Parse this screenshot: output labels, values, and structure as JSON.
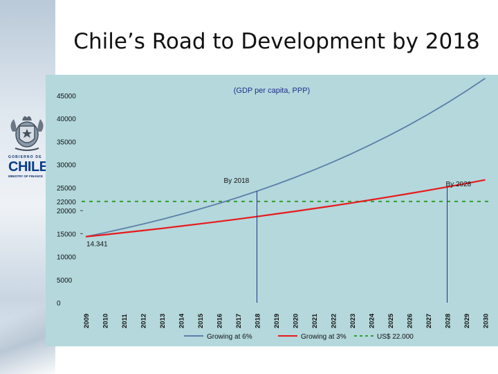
{
  "slide": {
    "title": "Chile’s Road to Development by 2018"
  },
  "logo": {
    "top_text": "GOBIERNO DE",
    "name": "CHILE",
    "sub_text": "MINISTRY OF FINANCE"
  },
  "colors": {
    "panel_bg": "#b4d8dc",
    "series_6": "#5b7fa6",
    "series_3": "#e8191b",
    "target": "#2e9e2e",
    "guide": "#1f2f8a"
  },
  "chart_data": {
    "type": "line",
    "title": "(GDP per capita, PPP)",
    "x": [
      2009,
      2010,
      2011,
      2012,
      2013,
      2014,
      2015,
      2016,
      2017,
      2018,
      2019,
      2020,
      2021,
      2022,
      2023,
      2024,
      2025,
      2026,
      2027,
      2028,
      2029,
      2030
    ],
    "x_tick_labels": [
      "2009",
      "2010",
      "2011",
      "2012",
      "2013",
      "2014",
      "2015",
      "2016",
      "2017",
      "2018",
      "2019",
      "2020",
      "2021",
      "2022",
      "2023",
      "2024",
      "2025",
      "2026",
      "2027",
      "2028",
      "2029",
      "2030"
    ],
    "y_tick_labels": [
      "0",
      "5000",
      "10000",
      "15000",
      "20000",
      "22000",
      "25000",
      "30000",
      "35000",
      "40000",
      "45000"
    ],
    "y_ticks": [
      0,
      5000,
      10000,
      15000,
      20000,
      22000,
      25000,
      30000,
      35000,
      40000,
      45000
    ],
    "ylim": [
      0,
      45000
    ],
    "series": [
      {
        "name": "Growing at 6%",
        "color": "#5b7fa6",
        "start": 14341,
        "rate": 0.06
      },
      {
        "name": "Growing at 3%",
        "color": "#e8191b",
        "start": 14341,
        "rate": 0.03
      },
      {
        "name": "US$ 22.000",
        "color": "#2e9e2e",
        "constant": 22000
      }
    ],
    "annotations": [
      {
        "text": "By 2018",
        "year": 2018
      },
      {
        "text": "By 2028",
        "year": 2028
      },
      {
        "text": "14.341",
        "year": 2009
      }
    ]
  }
}
